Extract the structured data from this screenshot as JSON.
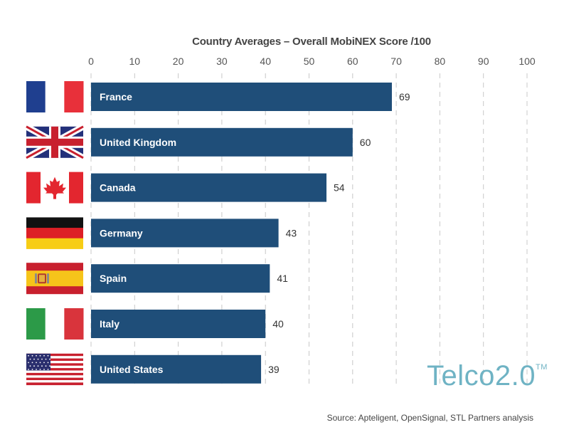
{
  "chart_data": {
    "type": "bar",
    "orientation": "horizontal",
    "title": "Country Averages – Overall MobiNEX Score /100",
    "categories": [
      "France",
      "United Kingdom",
      "Canada",
      "Germany",
      "Spain",
      "Italy",
      "United States"
    ],
    "values": [
      69,
      60,
      54,
      43,
      41,
      40,
      39
    ],
    "xlim": [
      0,
      100
    ],
    "x_ticks": [
      0,
      10,
      20,
      30,
      40,
      50,
      60,
      70,
      80,
      90,
      100
    ],
    "grid": "vertical dashed",
    "bar_color": "#1f4e79"
  },
  "flags": [
    {
      "country": "France",
      "icon": "france-flag-icon"
    },
    {
      "country": "United Kingdom",
      "icon": "uk-flag-icon"
    },
    {
      "country": "Canada",
      "icon": "canada-flag-icon"
    },
    {
      "country": "Germany",
      "icon": "germany-flag-icon"
    },
    {
      "country": "Spain",
      "icon": "spain-flag-icon"
    },
    {
      "country": "Italy",
      "icon": "italy-flag-icon"
    },
    {
      "country": "United States",
      "icon": "usa-flag-icon"
    }
  ],
  "logo": {
    "text": "Telco2.0",
    "tm": "TM",
    "color": "#6fb3c4"
  },
  "source": "Source: Apteligent, OpenSignal, STL Partners analysis"
}
